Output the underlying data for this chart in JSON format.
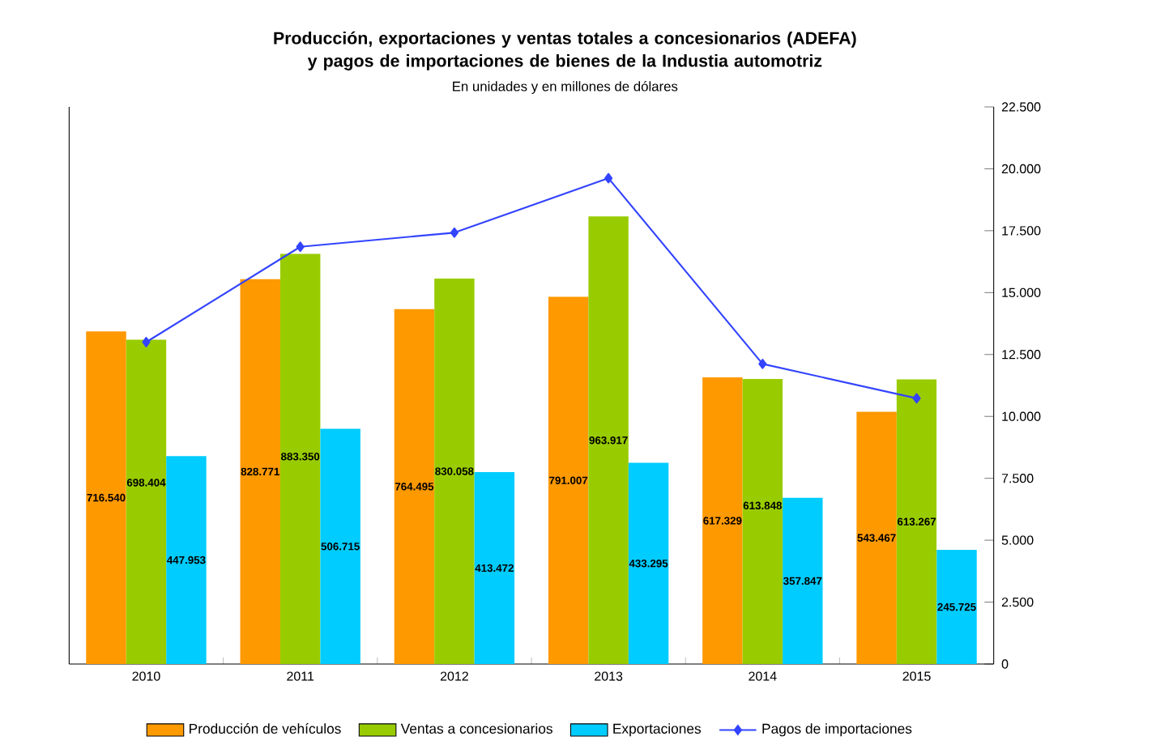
{
  "chart_data": {
    "type": "bar",
    "title": "Producción, exportaciones y ventas totales a concesionarios (ADEFA) y pagos de importaciones de bienes de la Industia automotriz",
    "subtitle": "En unidades y en millones de dólares",
    "categories": [
      "2010",
      "2011",
      "2012",
      "2013",
      "2014",
      "2015"
    ],
    "series": [
      {
        "name": "Producción de vehículos",
        "color": "#ff9900",
        "values": [
          716540,
          828771,
          764495,
          791007,
          617329,
          543467
        ],
        "value_labels": [
          "716.540",
          "828.771",
          "764.495",
          "791.007",
          "617.329",
          "543.467"
        ]
      },
      {
        "name": "Ventas a concesionarios",
        "color": "#99cc00",
        "values": [
          698404,
          883350,
          830058,
          963917,
          613848,
          613267
        ],
        "value_labels": [
          "698.404",
          "883.350",
          "830.058",
          "963.917",
          "613.848",
          "613.267"
        ]
      },
      {
        "name": "Exportaciones",
        "color": "#00ccff",
        "values": [
          447953,
          506715,
          413472,
          433295,
          357847,
          245725
        ],
        "value_labels": [
          "447.953",
          "506.715",
          "413.472",
          "433.295",
          "357.847",
          "245.725"
        ]
      },
      {
        "name": "Pagos de importaciones",
        "type": "line",
        "axis": "y2",
        "color": "#3344ff",
        "marker": "diamond",
        "values": [
          13000,
          16850,
          17420,
          19620,
          12120,
          10730
        ]
      }
    ],
    "ylim": [
      0,
      1200000
    ],
    "y2lim": [
      0,
      22500
    ],
    "y2ticks": [
      0,
      {
        "value": 2500,
        "label": "2.500"
      },
      {
        "value": 5000,
        "label": "5.000"
      },
      {
        "value": 7500,
        "label": "7.500"
      },
      {
        "value": 10000,
        "label": "10.000"
      },
      {
        "value": 12500,
        "label": "12.500"
      },
      {
        "value": 15000,
        "label": "15.000"
      },
      {
        "value": 17500,
        "label": "17.500"
      },
      {
        "value": 20000,
        "label": "20.000"
      },
      {
        "value": 22500,
        "label": "22.500"
      }
    ],
    "legend": "bottom"
  }
}
